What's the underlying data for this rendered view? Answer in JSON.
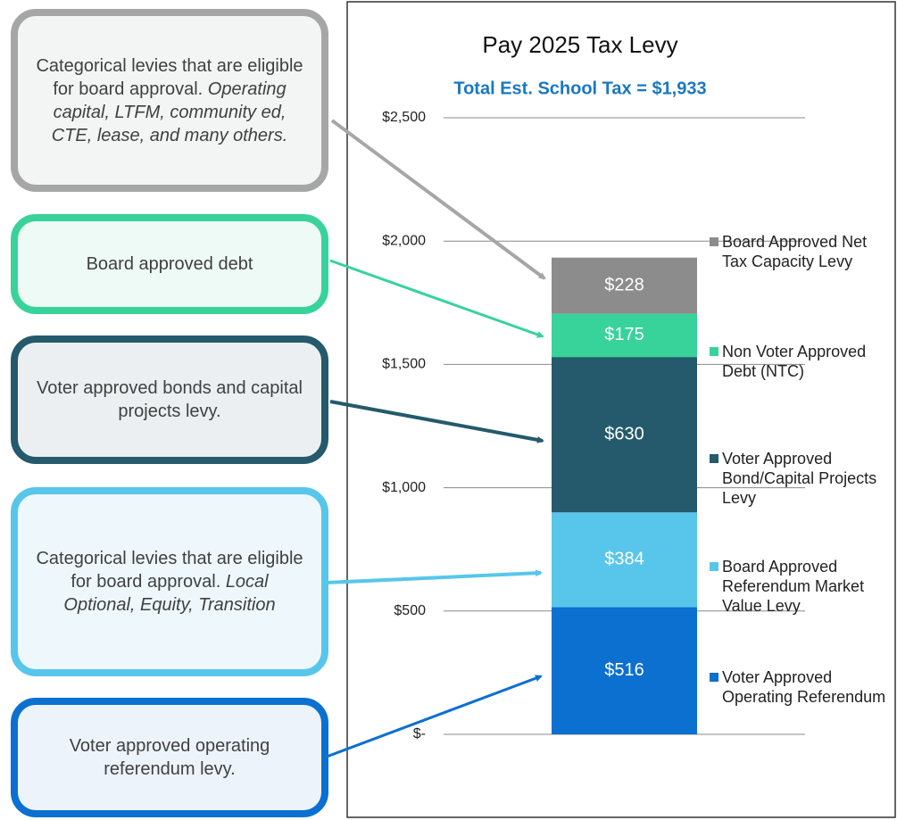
{
  "chart_data": {
    "type": "bar",
    "stacked": true,
    "title": "Pay 2025 Tax Levy",
    "subtitle": "Total Est. School Tax =  $1,933",
    "categories": [
      null
    ],
    "series": [
      {
        "name": "Voter Approved Operating Referendum",
        "color": "#0b70d0",
        "values": [
          516
        ],
        "value_labels": [
          "$516"
        ]
      },
      {
        "name": "Board Approved Referendum Market Value Levy",
        "color": "#58c6ea",
        "values": [
          384
        ],
        "value_labels": [
          "$384"
        ]
      },
      {
        "name": "Voter Approved Bond/Capital Projects Levy",
        "color": "#245a6b",
        "values": [
          630
        ],
        "value_labels": [
          "$630"
        ]
      },
      {
        "name": "Non Voter Approved Debt (NTC)",
        "color": "#37d39a",
        "values": [
          175
        ],
        "value_labels": [
          "$175"
        ]
      },
      {
        "name": "Board Approved Net Tax Capacity Levy",
        "color": "#8c8c8c",
        "values": [
          228
        ],
        "value_labels": [
          "$228"
        ]
      }
    ],
    "ylim": [
      0,
      2500
    ],
    "yticks": [
      {
        "value": 0,
        "label": "$-"
      },
      {
        "value": 500,
        "label": "$500"
      },
      {
        "value": 1000,
        "label": "$1,000"
      },
      {
        "value": 1500,
        "label": "$1,500"
      },
      {
        "value": 2000,
        "label": "$2,000"
      },
      {
        "value": 2500,
        "label": "$2,500"
      }
    ],
    "grid": true,
    "legend": "right",
    "annotations": [
      {
        "text": "Categorical levies that are eligible for board approval. ",
        "italic": "Operating capital, LTFM, community ed, CTE, lease, and many others."
      },
      {
        "text": "Board approved debt"
      },
      {
        "text": "Voter approved bonds and capital projects levy."
      },
      {
        "text": "Categorical levies that are eligible for board approval. ",
        "italic": "Local Optional, Equity, Transition"
      },
      {
        "text": "Voter approved operating referendum levy."
      }
    ]
  }
}
